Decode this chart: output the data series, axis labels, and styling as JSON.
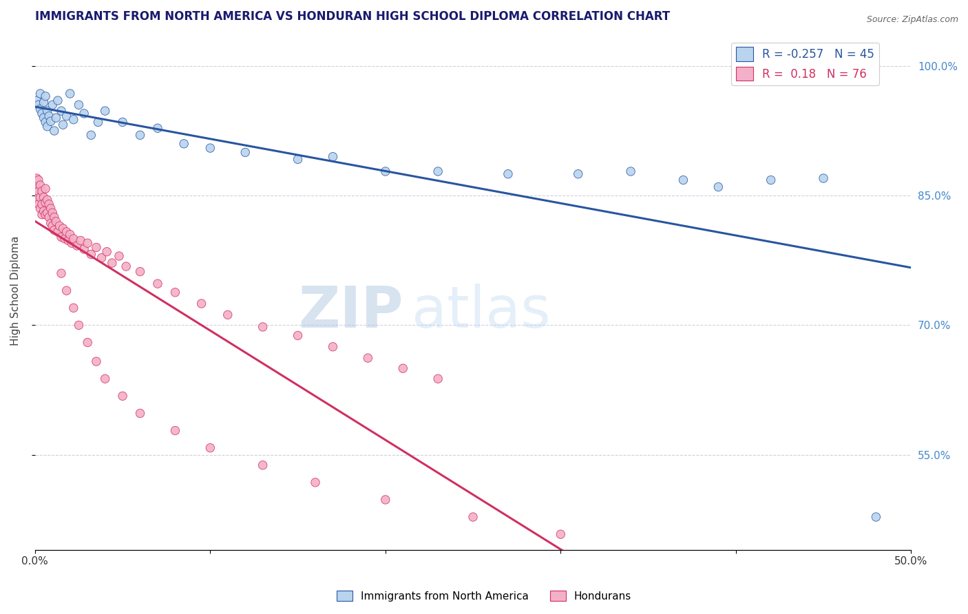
{
  "title": "IMMIGRANTS FROM NORTH AMERICA VS HONDURAN HIGH SCHOOL DIPLOMA CORRELATION CHART",
  "source": "Source: ZipAtlas.com",
  "xlabel_bottom": "Immigrants from North America",
  "xlabel_bottom2": "Hondurans",
  "ylabel": "High School Diploma",
  "xlim": [
    0.0,
    0.5
  ],
  "ylim": [
    0.44,
    1.04
  ],
  "xticks": [
    0.0,
    0.1,
    0.2,
    0.3,
    0.4,
    0.5
  ],
  "xtick_labels": [
    "0.0%",
    "",
    "",
    "",
    "",
    "50.0%"
  ],
  "ytick_labels_right": [
    "100.0%",
    "85.0%",
    "70.0%",
    "55.0%"
  ],
  "ytick_values_right": [
    1.0,
    0.85,
    0.7,
    0.55
  ],
  "blue_R": -0.257,
  "blue_N": 45,
  "pink_R": 0.18,
  "pink_N": 76,
  "blue_color": "#b8d4ee",
  "pink_color": "#f4b0c8",
  "blue_line_color": "#2855a0",
  "pink_line_color": "#d03060",
  "watermark_zip": "ZIP",
  "watermark_atlas": "atlas",
  "background_color": "#ffffff",
  "grid_color": "#d0d0e0",
  "title_color": "#1a1a6e",
  "right_label_color": "#4488cc",
  "blue_scatter_x": [
    0.001,
    0.002,
    0.003,
    0.003,
    0.004,
    0.005,
    0.005,
    0.006,
    0.006,
    0.007,
    0.007,
    0.008,
    0.009,
    0.01,
    0.011,
    0.012,
    0.013,
    0.015,
    0.016,
    0.018,
    0.02,
    0.022,
    0.025,
    0.028,
    0.032,
    0.036,
    0.04,
    0.05,
    0.06,
    0.07,
    0.085,
    0.1,
    0.12,
    0.15,
    0.17,
    0.2,
    0.23,
    0.27,
    0.31,
    0.34,
    0.37,
    0.39,
    0.42,
    0.45,
    0.48
  ],
  "blue_scatter_y": [
    0.96,
    0.955,
    0.968,
    0.95,
    0.945,
    0.958,
    0.94,
    0.965,
    0.935,
    0.948,
    0.93,
    0.942,
    0.936,
    0.955,
    0.925,
    0.94,
    0.96,
    0.948,
    0.932,
    0.942,
    0.968,
    0.938,
    0.955,
    0.945,
    0.92,
    0.935,
    0.948,
    0.935,
    0.92,
    0.928,
    0.91,
    0.905,
    0.9,
    0.892,
    0.895,
    0.878,
    0.878,
    0.875,
    0.875,
    0.878,
    0.868,
    0.86,
    0.868,
    0.87,
    0.478
  ],
  "blue_scatter_sizes": [
    80,
    80,
    80,
    80,
    80,
    80,
    80,
    80,
    80,
    80,
    80,
    80,
    80,
    80,
    80,
    80,
    80,
    80,
    80,
    80,
    80,
    80,
    80,
    80,
    80,
    80,
    80,
    80,
    80,
    80,
    80,
    80,
    80,
    80,
    80,
    80,
    80,
    80,
    80,
    80,
    80,
    80,
    80,
    80,
    80
  ],
  "pink_scatter_x": [
    0.001,
    0.001,
    0.001,
    0.002,
    0.002,
    0.002,
    0.003,
    0.003,
    0.003,
    0.004,
    0.004,
    0.004,
    0.005,
    0.005,
    0.006,
    0.006,
    0.006,
    0.007,
    0.007,
    0.008,
    0.008,
    0.009,
    0.009,
    0.01,
    0.01,
    0.011,
    0.011,
    0.012,
    0.013,
    0.014,
    0.015,
    0.016,
    0.017,
    0.018,
    0.019,
    0.02,
    0.021,
    0.022,
    0.024,
    0.026,
    0.028,
    0.03,
    0.032,
    0.035,
    0.038,
    0.041,
    0.044,
    0.048,
    0.052,
    0.06,
    0.07,
    0.08,
    0.095,
    0.11,
    0.13,
    0.15,
    0.17,
    0.19,
    0.21,
    0.23,
    0.015,
    0.018,
    0.022,
    0.025,
    0.03,
    0.035,
    0.04,
    0.05,
    0.06,
    0.08,
    0.1,
    0.13,
    0.16,
    0.2,
    0.25,
    0.3
  ],
  "pink_scatter_y": [
    0.87,
    0.858,
    0.845,
    0.868,
    0.855,
    0.84,
    0.862,
    0.848,
    0.835,
    0.855,
    0.84,
    0.828,
    0.848,
    0.832,
    0.858,
    0.842,
    0.828,
    0.845,
    0.83,
    0.84,
    0.825,
    0.835,
    0.818,
    0.83,
    0.815,
    0.825,
    0.81,
    0.82,
    0.808,
    0.815,
    0.802,
    0.812,
    0.8,
    0.808,
    0.798,
    0.805,
    0.795,
    0.8,
    0.792,
    0.798,
    0.788,
    0.795,
    0.782,
    0.79,
    0.778,
    0.785,
    0.772,
    0.78,
    0.768,
    0.762,
    0.748,
    0.738,
    0.725,
    0.712,
    0.698,
    0.688,
    0.675,
    0.662,
    0.65,
    0.638,
    0.76,
    0.74,
    0.72,
    0.7,
    0.68,
    0.658,
    0.638,
    0.618,
    0.598,
    0.578,
    0.558,
    0.538,
    0.518,
    0.498,
    0.478,
    0.458
  ],
  "pink_scatter_sizes": [
    80,
    80,
    200,
    80,
    80,
    80,
    80,
    80,
    80,
    80,
    80,
    80,
    80,
    80,
    80,
    80,
    80,
    80,
    80,
    80,
    80,
    80,
    80,
    80,
    80,
    80,
    80,
    80,
    80,
    80,
    80,
    80,
    80,
    80,
    80,
    80,
    80,
    80,
    80,
    80,
    80,
    80,
    80,
    80,
    80,
    80,
    80,
    80,
    80,
    80,
    80,
    80,
    80,
    80,
    80,
    80,
    80,
    80,
    80,
    80,
    80,
    80,
    80,
    80,
    80,
    80,
    80,
    80,
    80,
    80,
    80,
    80,
    80,
    80,
    80,
    80
  ]
}
